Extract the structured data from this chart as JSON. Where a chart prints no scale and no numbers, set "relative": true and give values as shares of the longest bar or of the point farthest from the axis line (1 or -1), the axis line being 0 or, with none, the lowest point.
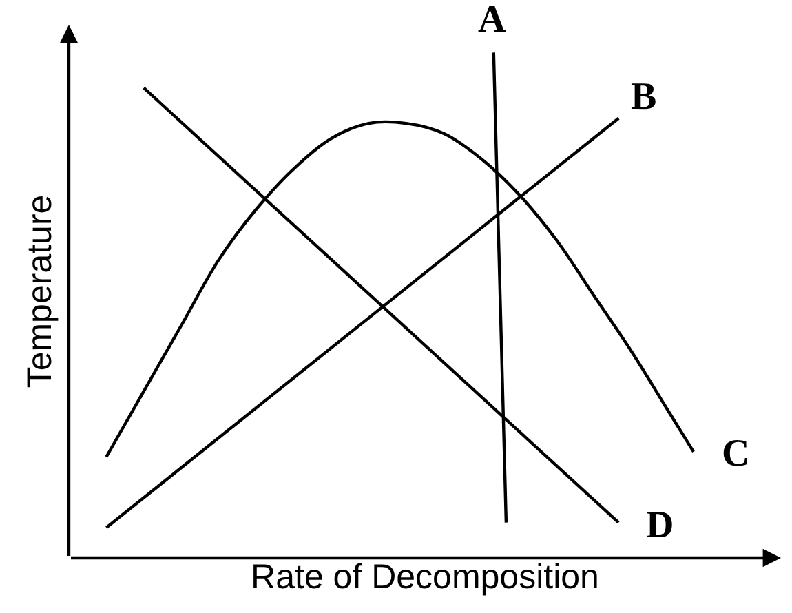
{
  "chart_data": {
    "type": "line",
    "relative": true,
    "xlabel": "Rate of Decomposition",
    "ylabel": "Temperature",
    "legend": false,
    "marker": "none",
    "line_style": "solid",
    "categories": [
      null,
      null,
      null,
      null,
      null,
      null,
      null,
      null,
      null,
      null,
      null,
      null,
      null,
      null,
      null,
      null,
      null,
      null,
      null,
      null,
      null,
      null,
      null,
      null,
      null,
      null,
      null,
      null,
      null,
      null,
      null,
      null,
      null,
      null,
      null,
      null,
      null,
      null,
      null,
      null,
      null,
      null,
      null,
      null,
      null,
      null,
      null,
      null,
      null,
      null
    ],
    "series": [
      {
        "name": "A",
        "color": "#000000",
        "values": [
          null,
          null,
          null,
          null,
          null,
          null,
          null,
          null,
          null,
          null,
          null,
          null,
          null,
          null,
          null,
          null,
          null,
          null,
          null,
          null,
          null,
          null,
          null,
          null,
          null,
          null,
          null,
          null,
          null,
          null,
          null,
          null,
          null,
          1.0,
          0.07,
          null,
          null,
          null,
          null,
          null,
          null,
          null,
          null,
          null,
          null,
          null,
          null,
          null,
          null,
          null
        ]
      },
      {
        "name": "B",
        "color": "#000000",
        "values": [
          null,
          null,
          0.06,
          null,
          null,
          null,
          null,
          null,
          null,
          null,
          null,
          null,
          null,
          null,
          null,
          null,
          null,
          null,
          null,
          null,
          null,
          null,
          null,
          null,
          null,
          null,
          null,
          null,
          null,
          null,
          null,
          null,
          null,
          null,
          null,
          null,
          null,
          null,
          null,
          null,
          null,
          null,
          null,
          0.87,
          null,
          null,
          null,
          null,
          null,
          null
        ]
      },
      {
        "name": "C",
        "color": "#000000",
        "values": [
          null,
          null,
          0.2,
          null,
          null,
          0.33,
          null,
          null,
          0.46,
          null,
          null,
          0.59,
          null,
          null,
          0.69,
          null,
          null,
          0.77,
          null,
          null,
          0.83,
          null,
          null,
          0.86,
          null,
          null,
          0.86,
          null,
          null,
          0.84,
          null,
          null,
          0.79,
          null,
          null,
          0.72,
          null,
          null,
          0.63,
          null,
          null,
          0.52,
          null,
          null,
          0.41,
          null,
          null,
          0.29,
          null,
          0.21
        ]
      },
      {
        "name": "D",
        "color": "#000000",
        "values": [
          null,
          null,
          null,
          null,
          null,
          0.93,
          null,
          null,
          null,
          null,
          null,
          null,
          null,
          null,
          null,
          null,
          null,
          null,
          null,
          null,
          null,
          null,
          null,
          null,
          null,
          null,
          null,
          null,
          null,
          null,
          null,
          null,
          null,
          null,
          null,
          null,
          null,
          null,
          null,
          null,
          null,
          null,
          null,
          0.07,
          null,
          null,
          null,
          null,
          null,
          null
        ]
      }
    ]
  }
}
